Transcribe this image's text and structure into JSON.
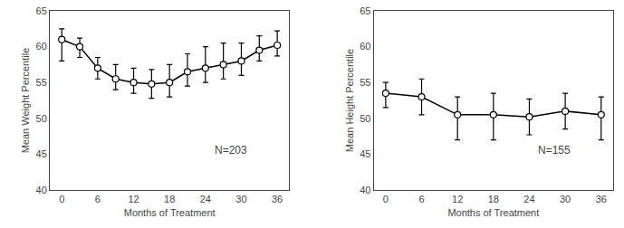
{
  "chart_data": [
    {
      "type": "line",
      "x": [
        0,
        3,
        6,
        9,
        12,
        15,
        18,
        21,
        24,
        27,
        30,
        33,
        36
      ],
      "values": [
        61.0,
        60.0,
        57.0,
        55.5,
        55.0,
        54.8,
        55.0,
        56.5,
        57.0,
        57.5,
        58.0,
        59.5,
        60.2
      ],
      "yerr_upper": [
        1.5,
        1.2,
        1.5,
        2.0,
        2.0,
        2.0,
        2.5,
        2.5,
        3.0,
        3.0,
        2.5,
        2.0,
        2.0
      ],
      "yerr_lower": [
        3.0,
        1.5,
        1.5,
        1.5,
        1.5,
        2.0,
        2.0,
        2.0,
        2.0,
        2.0,
        2.0,
        1.5,
        1.5
      ],
      "color": "#000000",
      "marker": "circle",
      "xlabel": "Months of Treatment",
      "ylabel": "Mean Weight Percentile",
      "annotation": "N=203",
      "xlim": [
        -2,
        38
      ],
      "xticks": [
        0,
        6,
        12,
        18,
        24,
        30,
        36
      ],
      "ylim": [
        40,
        65
      ],
      "yticks": [
        40,
        45,
        50,
        55,
        60,
        65
      ],
      "grid": false
    },
    {
      "type": "line",
      "x": [
        0,
        6,
        12,
        18,
        24,
        30,
        36
      ],
      "values": [
        53.5,
        53.0,
        50.5,
        50.5,
        50.2,
        51.0,
        50.5
      ],
      "yerr_upper": [
        1.5,
        2.5,
        2.5,
        3.0,
        2.5,
        2.5,
        2.5
      ],
      "yerr_lower": [
        2.0,
        2.5,
        3.5,
        3.5,
        2.5,
        2.5,
        3.5
      ],
      "color": "#000000",
      "marker": "circle",
      "xlabel": "Months of Treatment",
      "ylabel": "Mean Height Percentile",
      "annotation": "N=155",
      "xlim": [
        -2,
        38
      ],
      "xticks": [
        0,
        6,
        12,
        18,
        24,
        30,
        36
      ],
      "ylim": [
        40,
        65
      ],
      "yticks": [
        40,
        45,
        50,
        55,
        60,
        65
      ],
      "grid": false
    }
  ]
}
